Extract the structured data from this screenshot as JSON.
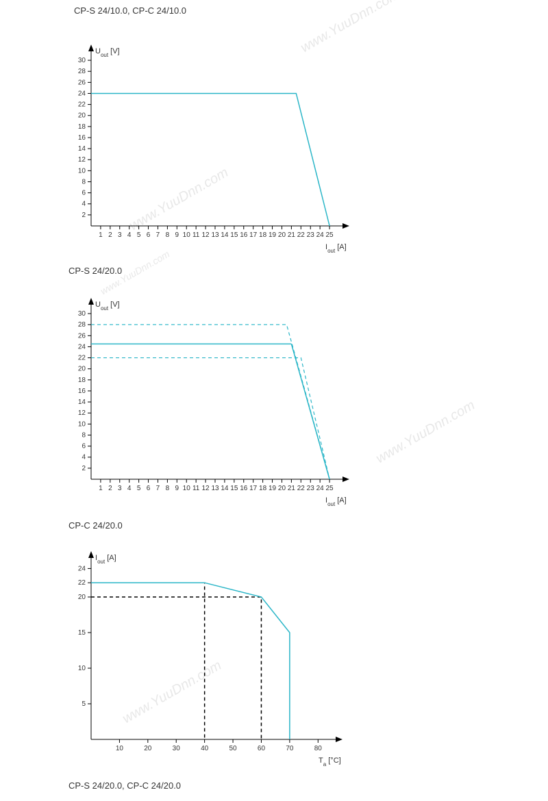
{
  "colors": {
    "line": "#29b5c7",
    "axis": "#000000",
    "text": "#333333",
    "grid": "#000000",
    "watermark": "#e8e8e8",
    "background": "#ffffff"
  },
  "watermarks": {
    "text": "www.YuuDnn.com"
  },
  "chart1": {
    "title": "CP-S 24/10.0, CP-C 24/10.0",
    "type": "line",
    "y_label": "Uout [V]",
    "x_label": "Iout [A]",
    "x_ticks": [
      1,
      2,
      3,
      4,
      5,
      6,
      7,
      8,
      9,
      10,
      11,
      12,
      13,
      14,
      15,
      16,
      17,
      18,
      19,
      20,
      21,
      22,
      23,
      24,
      25
    ],
    "y_ticks": [
      2,
      4,
      6,
      8,
      10,
      12,
      14,
      16,
      18,
      20,
      22,
      24,
      26,
      28,
      30
    ],
    "xlim": [
      0,
      26
    ],
    "ylim": [
      0,
      31
    ],
    "series": [
      {
        "points": [
          [
            0,
            24
          ],
          [
            21.5,
            24
          ],
          [
            25,
            0
          ]
        ],
        "color": "#29b5c7",
        "width": 1.5,
        "dash": "none"
      }
    ],
    "label_fontsize": 11,
    "tick_fontsize": 10
  },
  "chart2": {
    "title": "CP-S 24/20.0",
    "type": "line",
    "y_label": "Uout [V]",
    "x_label": "Iout [A]",
    "x_ticks": [
      1,
      2,
      3,
      4,
      5,
      6,
      7,
      8,
      9,
      10,
      11,
      12,
      13,
      14,
      15,
      16,
      17,
      18,
      19,
      20,
      21,
      22,
      23,
      24,
      25
    ],
    "y_ticks": [
      2,
      4,
      6,
      8,
      10,
      12,
      14,
      16,
      18,
      20,
      22,
      24,
      26,
      28,
      30
    ],
    "xlim": [
      0,
      26
    ],
    "ylim": [
      0,
      31
    ],
    "series": [
      {
        "points": [
          [
            0,
            28
          ],
          [
            20.5,
            28
          ],
          [
            25,
            0
          ]
        ],
        "color": "#29b5c7",
        "width": 1.2,
        "dash": "5,4"
      },
      {
        "points": [
          [
            0,
            24.5
          ],
          [
            21,
            24.5
          ]
        ],
        "color": "#29b5c7",
        "width": 1.5,
        "dash": "none"
      },
      {
        "points": [
          [
            0,
            22
          ],
          [
            22,
            22
          ],
          [
            25,
            0
          ]
        ],
        "color": "#29b5c7",
        "width": 1.2,
        "dash": "5,4"
      },
      {
        "points": [
          [
            21,
            24.5
          ],
          [
            25,
            0
          ]
        ],
        "color": "#29b5c7",
        "width": 1.5,
        "dash": "none"
      }
    ],
    "label_fontsize": 11,
    "tick_fontsize": 10
  },
  "chart3": {
    "title": "CP-C 24/20.0",
    "type": "line",
    "y_label": "Iout [A]",
    "x_label": "Ta [°C]",
    "x_ticks": [
      10,
      20,
      30,
      40,
      50,
      60,
      70,
      80
    ],
    "y_ticks": [
      5,
      10,
      15,
      20,
      22,
      24
    ],
    "xlim": [
      0,
      85
    ],
    "ylim": [
      0,
      25
    ],
    "series": [
      {
        "points": [
          [
            0,
            22
          ],
          [
            40,
            22
          ],
          [
            60,
            20
          ],
          [
            70,
            15
          ],
          [
            70,
            0
          ]
        ],
        "color": "#29b5c7",
        "width": 1.5,
        "dash": "none"
      }
    ],
    "guides": [
      {
        "points": [
          [
            0,
            20
          ],
          [
            60,
            20
          ],
          [
            60,
            0
          ]
        ],
        "color": "#000000",
        "width": 1.5,
        "dash": "5,4"
      },
      {
        "points": [
          [
            0,
            22
          ],
          [
            40,
            22
          ],
          [
            40,
            0
          ]
        ],
        "color": "#000000",
        "width": 1.5,
        "dash": "5,4"
      }
    ],
    "label_fontsize": 11,
    "tick_fontsize": 10
  },
  "footer_title": "CP-S 24/20.0, CP-C 24/20.0"
}
